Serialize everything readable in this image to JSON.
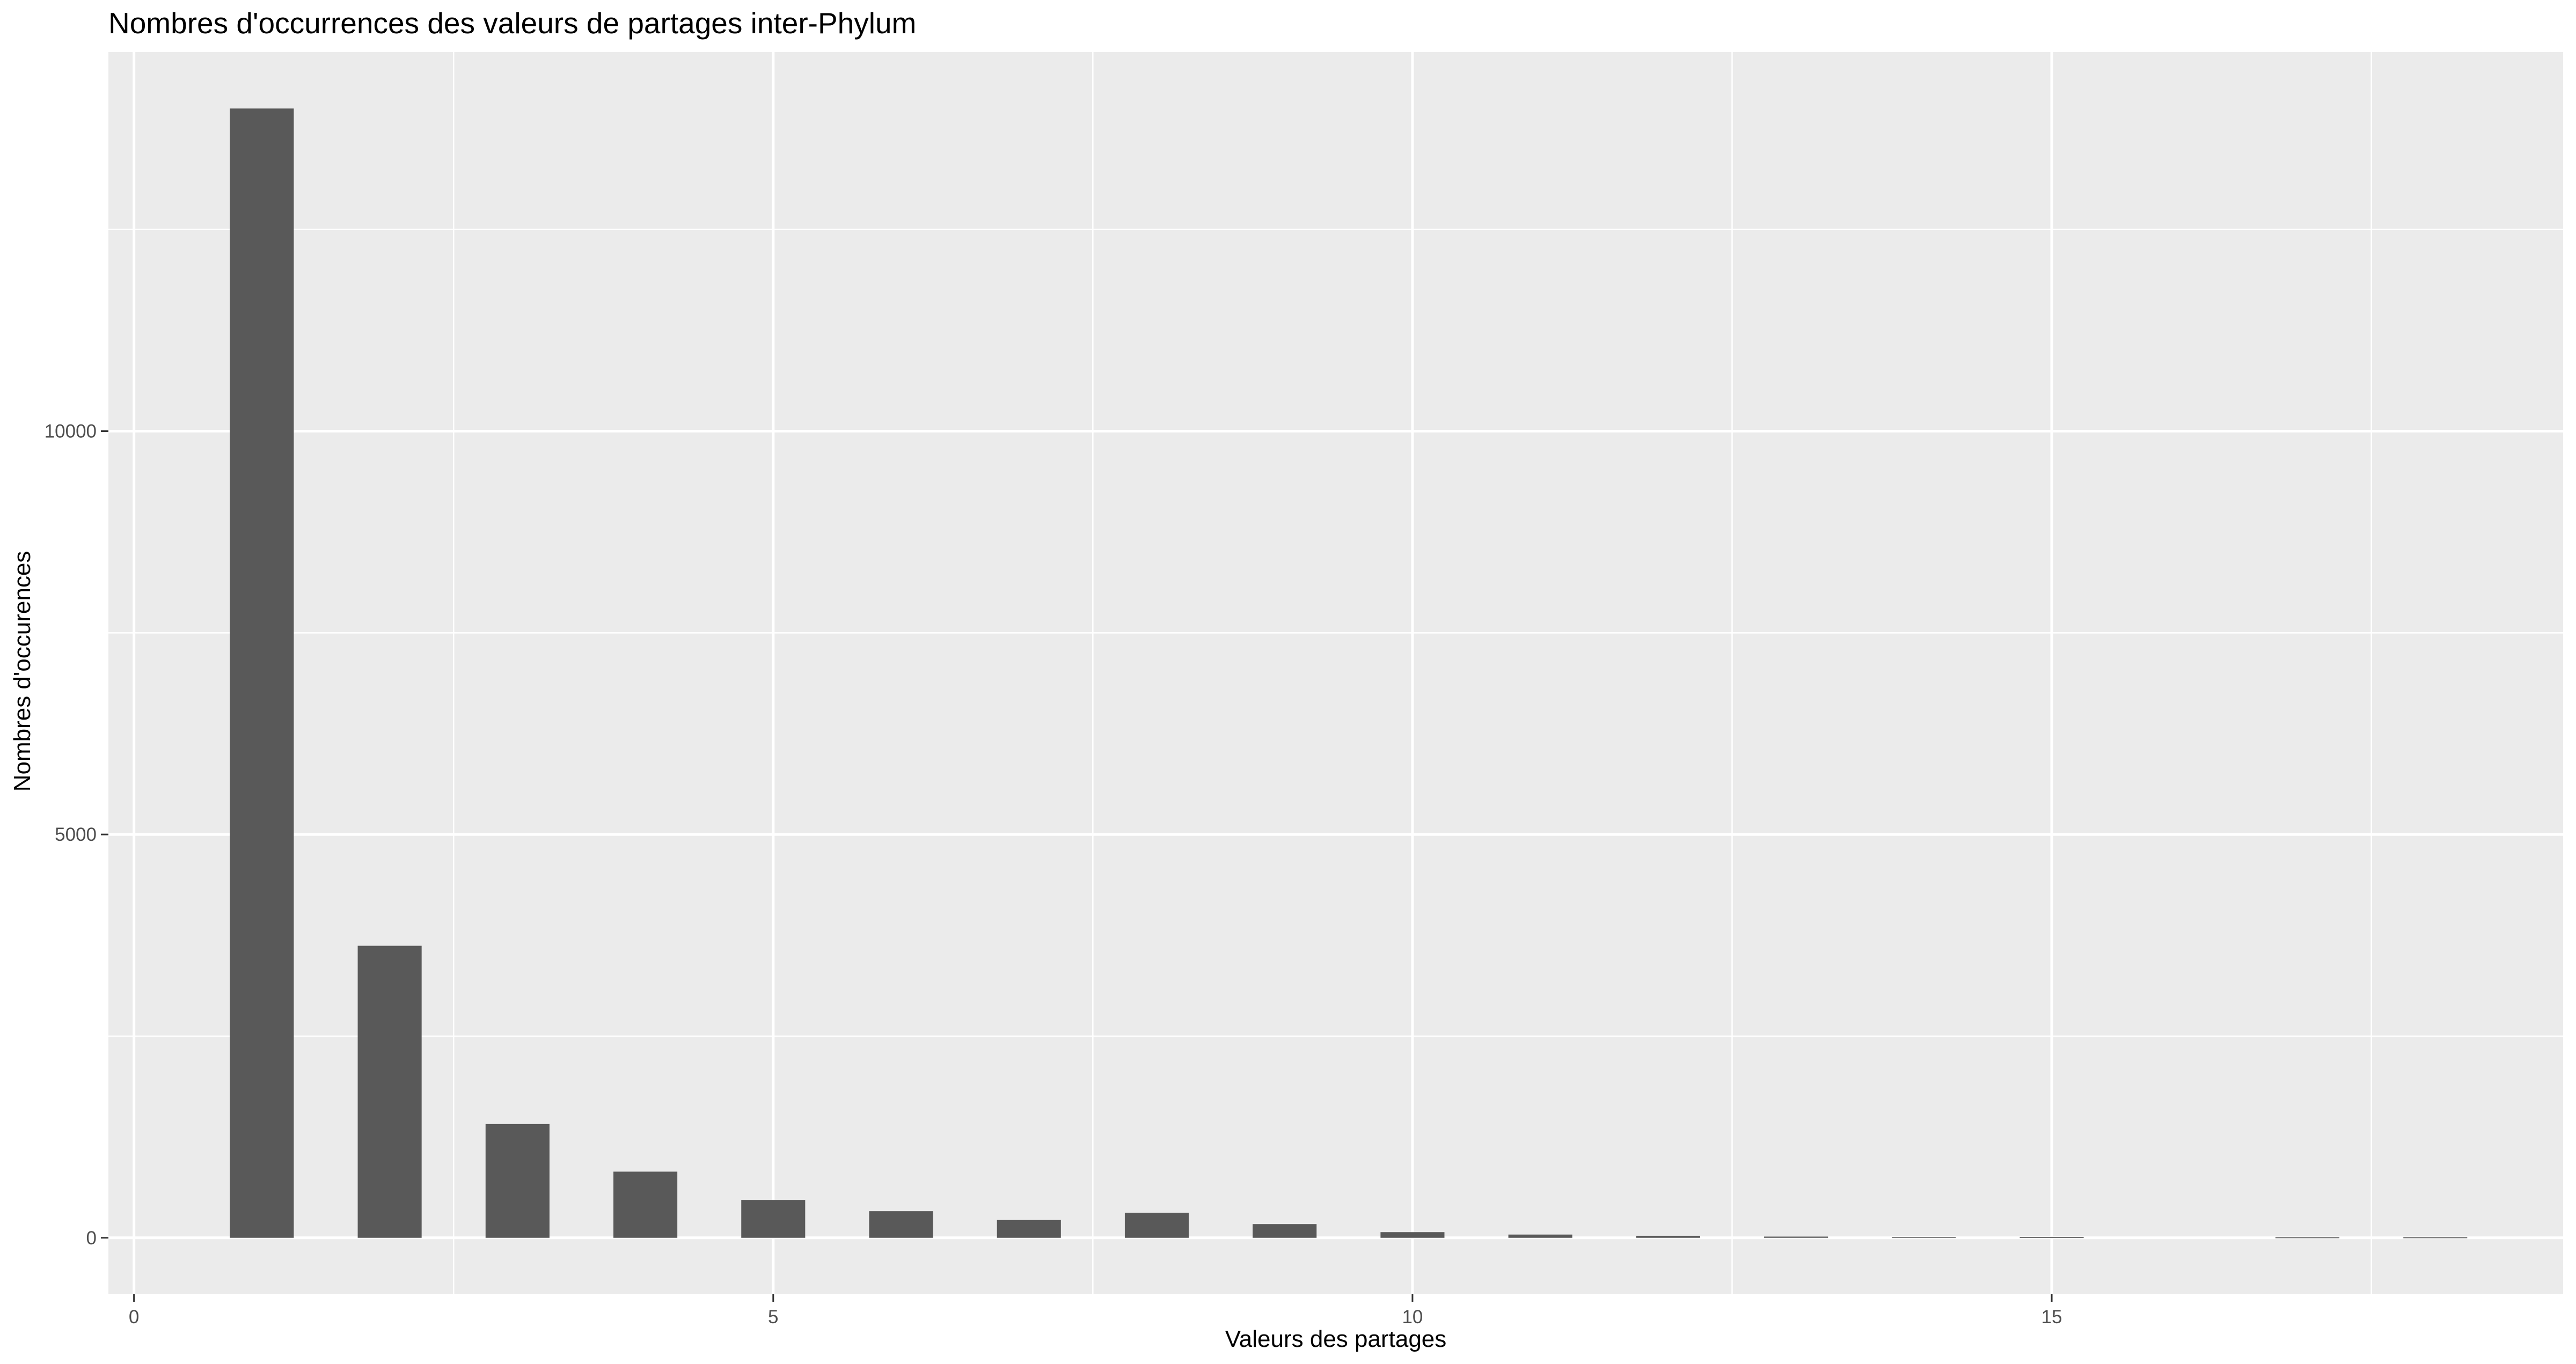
{
  "chart_data": {
    "type": "bar",
    "title": "Nombres d'occurrences des valeurs de partages inter-Phylum",
    "xlabel": "Valeurs des partages",
    "ylabel": "Nombres d'occurences",
    "x": [
      1,
      2,
      3,
      4,
      5,
      6,
      7,
      8,
      9,
      10,
      11,
      12,
      13,
      14,
      15,
      17,
      18
    ],
    "values": [
      14000,
      3620,
      1410,
      820,
      470,
      330,
      220,
      310,
      170,
      70,
      40,
      25,
      15,
      10,
      8,
      5,
      5
    ],
    "xlim": [
      -0.2,
      19
    ],
    "ylim": [
      -700,
      14700
    ],
    "x_ticks": [
      0,
      5,
      10,
      15
    ],
    "x_tick_labels": [
      "0",
      "5",
      "10",
      "15"
    ],
    "y_ticks": [
      0,
      5000,
      10000
    ],
    "y_tick_labels": [
      "0",
      "5000",
      "10000"
    ],
    "grid": true,
    "legend": "none",
    "colors": {
      "bar": "#595959",
      "panel_background": "#ebebeb",
      "grid": "#ffffff",
      "tick": "#333333"
    }
  }
}
